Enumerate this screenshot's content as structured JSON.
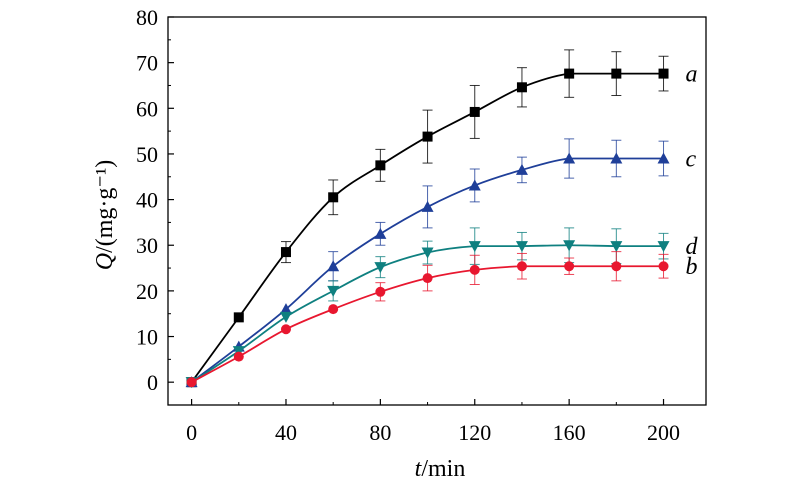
{
  "chart_data": {
    "type": "line",
    "title": "",
    "xlabel_italic": "t",
    "xlabel_rest": "/min",
    "ylabel_italic": "Q",
    "ylabel_rest": "/(mg·g⁻¹)",
    "xlim": [
      -10,
      218
    ],
    "ylim": [
      -5,
      80
    ],
    "xticks": [
      0,
      40,
      80,
      120,
      160,
      200
    ],
    "yticks": [
      0,
      10,
      20,
      30,
      40,
      50,
      60,
      70,
      80
    ],
    "grid": false,
    "x": [
      0,
      20,
      40,
      60,
      80,
      100,
      120,
      140,
      160,
      180,
      200
    ],
    "series": [
      {
        "name": "a",
        "color": "#000000",
        "marker": "square",
        "values": [
          0,
          14.2,
          28.5,
          40.5,
          47.5,
          53.8,
          59.2,
          64.6,
          67.6,
          67.6,
          67.6
        ],
        "errors": [
          0,
          0,
          2.3,
          3.8,
          3.5,
          5.8,
          5.8,
          4.3,
          5.2,
          4.8,
          3.8
        ]
      },
      {
        "name": "c",
        "color": "#1f3f99",
        "marker": "triangle-up",
        "values": [
          0,
          7.8,
          16.0,
          25.4,
          32.5,
          38.4,
          43.1,
          46.5,
          49.0,
          49.0,
          49.0
        ],
        "errors": [
          0,
          0,
          0,
          3.2,
          2.5,
          4.6,
          3.6,
          2.8,
          4.3,
          4.0,
          3.8
        ]
      },
      {
        "name": "d",
        "color": "#0f8080",
        "marker": "triangle-down",
        "values": [
          0,
          6.8,
          14.3,
          20.0,
          25.2,
          28.4,
          29.8,
          29.8,
          30.0,
          29.8,
          29.8
        ],
        "errors": [
          0,
          0,
          0,
          2.2,
          2.3,
          2.5,
          4.0,
          3.0,
          3.8,
          3.8,
          2.8
        ]
      },
      {
        "name": "b",
        "color": "#e8172f",
        "marker": "circle",
        "values": [
          0,
          5.6,
          11.6,
          16.0,
          19.8,
          22.8,
          24.6,
          25.4,
          25.4,
          25.4,
          25.4
        ],
        "errors": [
          0,
          0,
          0,
          0,
          2.0,
          2.8,
          3.2,
          2.8,
          1.8,
          3.2,
          2.6
        ]
      }
    ]
  }
}
